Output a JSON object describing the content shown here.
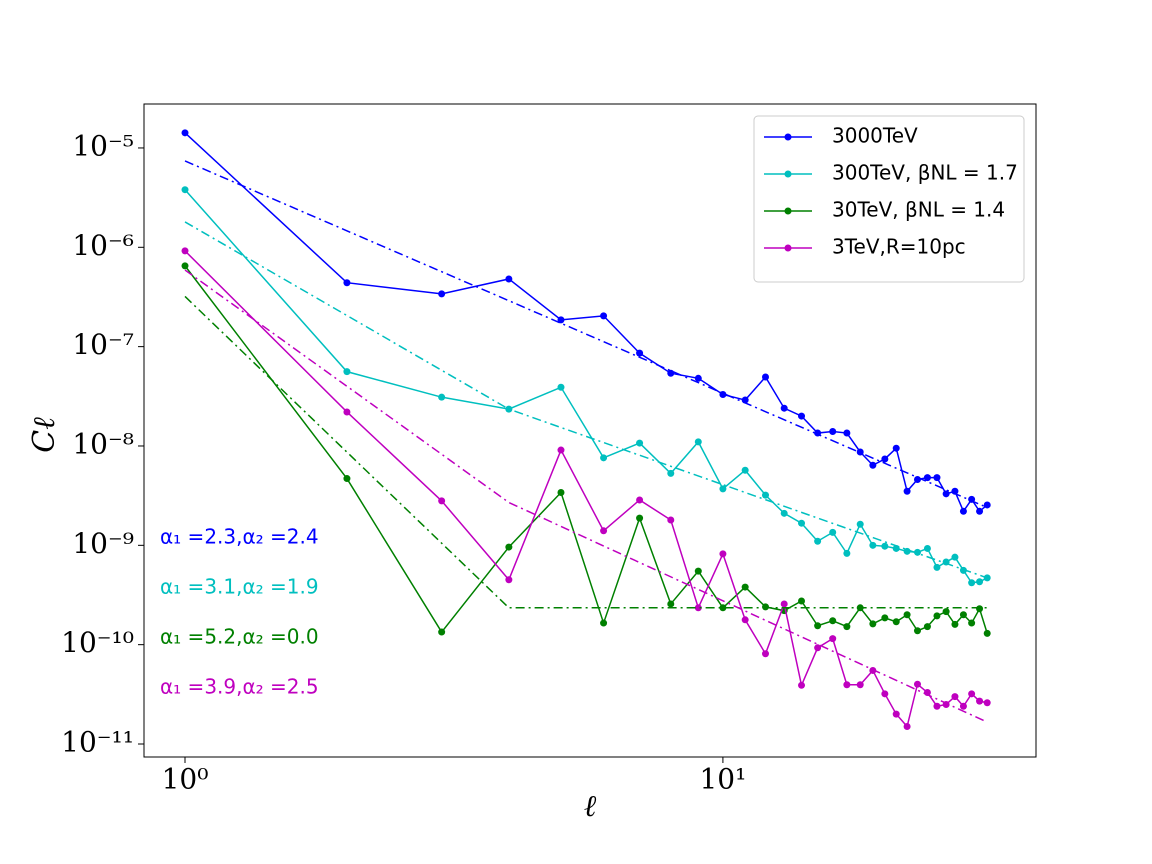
{
  "chart_data": {
    "type": "line",
    "xlabel": "ℓ",
    "ylabel": "Cℓ",
    "xlog": true,
    "ylog": true,
    "legend": "upper right",
    "xlim": [
      0.839,
      38.2
    ],
    "ylim": [
      7.4e-12,
      2.77e-05
    ],
    "xticks": [
      {
        "value": 1,
        "label": "10⁰"
      },
      {
        "value": 10,
        "label": "10¹"
      }
    ],
    "yticks": [
      {
        "value": 1e-11,
        "label": "10⁻¹¹"
      },
      {
        "value": 1e-10,
        "label": "10⁻¹⁰"
      },
      {
        "value": 1e-09,
        "label": "10⁻⁹"
      },
      {
        "value": 1e-08,
        "label": "10⁻⁸"
      },
      {
        "value": 1e-07,
        "label": "10⁻⁷"
      },
      {
        "value": 1e-06,
        "label": "10⁻⁶"
      },
      {
        "value": 1e-05,
        "label": "10⁻⁵"
      }
    ],
    "x": [
      1,
      2,
      3,
      4,
      5,
      6,
      7,
      8,
      9,
      10,
      11,
      12,
      13,
      14,
      15,
      16,
      17,
      18,
      19,
      20,
      21,
      22,
      23,
      24,
      25,
      26,
      27,
      28,
      29,
      30,
      31
    ],
    "series": [
      {
        "name": "3000TeV",
        "color": "#0000ff",
        "marker": true,
        "linestyle": "solid",
        "values": [
          1.42e-05,
          4.4e-07,
          3.4e-07,
          4.8e-07,
          1.86e-07,
          2.04e-07,
          8.6e-08,
          5.4e-08,
          4.8e-08,
          3.3e-08,
          2.9e-08,
          4.95e-08,
          2.4e-08,
          2e-08,
          1.35e-08,
          1.4e-08,
          1.35e-08,
          8.7e-09,
          6.4e-09,
          7.4e-09,
          9.5e-09,
          3.5e-09,
          4.6e-09,
          4.8e-09,
          4.8e-09,
          3.3e-09,
          3.5e-09,
          2.2e-09,
          2.9e-09,
          2.2e-09,
          2.55e-09
        ]
      },
      {
        "name": "300TeV, βNL = 1.7",
        "color": "#00bfbf",
        "marker": true,
        "linestyle": "solid",
        "values": [
          3.8e-06,
          5.6e-08,
          3.1e-08,
          2.35e-08,
          3.9e-08,
          7.6e-09,
          1.07e-08,
          5.3e-09,
          1.1e-08,
          3.7e-09,
          5.7e-09,
          3.2e-09,
          2.1e-09,
          1.67e-09,
          1.1e-09,
          1.35e-09,
          8.3e-10,
          1.63e-09,
          1e-09,
          9.8e-10,
          9.3e-10,
          8.7e-10,
          8.5e-10,
          9.3e-10,
          6e-10,
          6.8e-10,
          7.6e-10,
          5.6e-10,
          4.2e-10,
          4.3e-10,
          4.7e-10
        ]
      },
      {
        "name": "30TeV, βNL = 1.4",
        "color": "#008000",
        "marker": true,
        "linestyle": "solid",
        "values": [
          6.5e-07,
          4.7e-09,
          1.34e-10,
          9.6e-10,
          3.4e-09,
          1.65e-10,
          1.88e-09,
          2.57e-10,
          5.5e-10,
          2.35e-10,
          3.8e-10,
          2.4e-10,
          2.2e-10,
          2.75e-10,
          1.55e-10,
          1.74e-10,
          1.52e-10,
          2.35e-10,
          1.62e-10,
          1.86e-10,
          1.7e-10,
          2e-10,
          1.38e-10,
          1.52e-10,
          1.95e-10,
          2.15e-10,
          1.6e-10,
          2e-10,
          1.65e-10,
          2.3e-10,
          1.3e-10
        ]
      },
      {
        "name": "3TeV,R=10pc",
        "color": "#bf00bf",
        "marker": true,
        "linestyle": "solid",
        "values": [
          9.2e-07,
          2.2e-08,
          2.8e-09,
          4.5e-10,
          9.1e-09,
          1.4e-09,
          2.86e-09,
          1.8e-09,
          2.35e-10,
          8.2e-10,
          1.78e-10,
          8.1e-11,
          2.57e-10,
          3.9e-11,
          9.3e-11,
          1.15e-10,
          3.95e-11,
          3.95e-11,
          5.5e-11,
          3.2e-11,
          2e-11,
          1.5e-11,
          4e-11,
          3.3e-11,
          2.4e-11,
          2.5e-11,
          3e-11,
          2.4e-11,
          3.2e-11,
          2.7e-11,
          2.6e-11
        ]
      },
      {
        "color": "#0000ff",
        "marker": false,
        "linestyle": "dashdot",
        "x": [
          1,
          4,
          31
        ],
        "values": [
          7.4e-06,
          2.9e-07,
          2.4e-09
        ]
      },
      {
        "color": "#00bfbf",
        "marker": false,
        "linestyle": "dashdot",
        "x": [
          1,
          4,
          31
        ],
        "values": [
          1.8e-06,
          2.35e-08,
          4.7e-10
        ]
      },
      {
        "color": "#008000",
        "marker": false,
        "linestyle": "dashdot",
        "x": [
          1,
          4,
          31
        ],
        "values": [
          3.2e-07,
          2.35e-10,
          2.35e-10
        ]
      },
      {
        "color": "#bf00bf",
        "marker": false,
        "linestyle": "dashdot",
        "x": [
          1,
          4,
          31
        ],
        "values": [
          5.9e-07,
          2.7e-09,
          1.66e-11
        ]
      }
    ],
    "annotations": [
      {
        "text": "α₁ =2.3,α₂ =2.4",
        "color": "#0000ff"
      },
      {
        "text": "α₁ =3.1,α₂ =1.9",
        "color": "#00bfbf"
      },
      {
        "text": "α₁ =5.2,α₂ =0.0",
        "color": "#008000"
      },
      {
        "text": "α₁ =3.9,α₂ =2.5",
        "color": "#bf00bf"
      }
    ]
  }
}
